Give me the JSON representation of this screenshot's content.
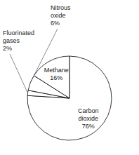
{
  "chart_data": {
    "type": "pie",
    "categories": [
      "Carbon dioxide",
      "Fluorinated gases",
      "Nitrous oxide",
      "Methane"
    ],
    "values": [
      76,
      2,
      6,
      16
    ],
    "value_labels": [
      "76%",
      "2%",
      "6%",
      "16%"
    ],
    "colors": [
      "#ffffff",
      "#ffffff",
      "#ffffff",
      "#ffffff"
    ],
    "data_labels": true
  }
}
